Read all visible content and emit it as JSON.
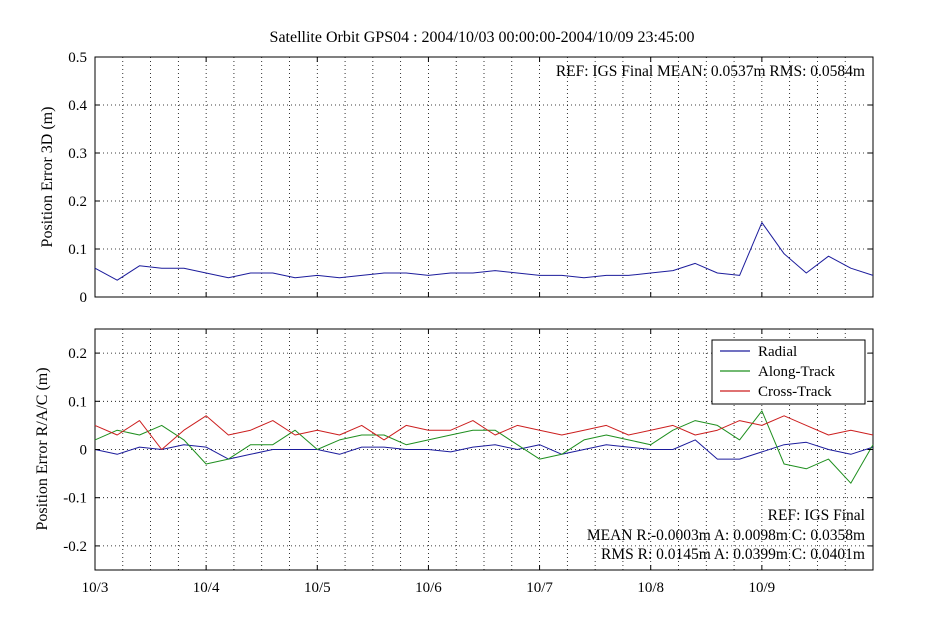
{
  "chart_data": [
    {
      "type": "line",
      "title": "Satellite Orbit GPS04 : 2004/10/03 00:00:00-2004/10/09 23:45:00",
      "xlabel": "",
      "ylabel": "Position Error 3D (m)",
      "xlim": [
        0,
        7
      ],
      "ylim": [
        0,
        0.5
      ],
      "yticks": [
        "0",
        "0.1",
        "0.2",
        "0.3",
        "0.4",
        "0.5"
      ],
      "xtick_labels": [
        "10/3",
        "10/4",
        "10/5",
        "10/6",
        "10/7",
        "10/8",
        "10/9"
      ],
      "grid": true,
      "annotation": "REF: IGS Final  MEAN:  0.0537m RMS:  0.0584m",
      "x": [
        0.0,
        0.2,
        0.4,
        0.6,
        0.8,
        1.0,
        1.2,
        1.4,
        1.6,
        1.8,
        2.0,
        2.2,
        2.4,
        2.6,
        2.8,
        3.0,
        3.2,
        3.4,
        3.6,
        3.8,
        4.0,
        4.2,
        4.4,
        4.6,
        4.8,
        5.0,
        5.2,
        5.4,
        5.6,
        5.8,
        6.0,
        6.2,
        6.4,
        6.6,
        6.8,
        7.0
      ],
      "series": [
        {
          "color": "#1c1c9c",
          "values": [
            0.06,
            0.035,
            0.065,
            0.06,
            0.06,
            0.05,
            0.04,
            0.05,
            0.05,
            0.04,
            0.045,
            0.04,
            0.045,
            0.05,
            0.05,
            0.045,
            0.05,
            0.05,
            0.055,
            0.05,
            0.045,
            0.045,
            0.04,
            0.045,
            0.045,
            0.05,
            0.055,
            0.07,
            0.05,
            0.045,
            0.155,
            0.09,
            0.05,
            0.085,
            0.06,
            0.045
          ]
        }
      ]
    },
    {
      "type": "line",
      "title": "",
      "xlabel": "",
      "ylabel": "Position Error R/A/C (m)",
      "xlim": [
        0,
        7
      ],
      "ylim": [
        -0.25,
        0.25
      ],
      "yticks": [
        "-0.2",
        "-0.1",
        "0",
        "0.1",
        "0.2"
      ],
      "xtick_labels": [
        "10/3",
        "10/4",
        "10/5",
        "10/6",
        "10/7",
        "10/8",
        "10/9"
      ],
      "grid": true,
      "legend_position": "top-right",
      "annotation_lines": [
        "REF: IGS Final",
        "MEAN R:-0.0003m A: 0.0098m C: 0.0358m",
        "RMS R: 0.0145m A: 0.0399m C: 0.0401m"
      ],
      "x": [
        0.0,
        0.2,
        0.4,
        0.6,
        0.8,
        1.0,
        1.2,
        1.4,
        1.6,
        1.8,
        2.0,
        2.2,
        2.4,
        2.6,
        2.8,
        3.0,
        3.2,
        3.4,
        3.6,
        3.8,
        4.0,
        4.2,
        4.4,
        4.6,
        4.8,
        5.0,
        5.2,
        5.4,
        5.6,
        5.8,
        6.0,
        6.2,
        6.4,
        6.6,
        6.8,
        7.0
      ],
      "series": [
        {
          "name": "Radial",
          "color": "#1c1c9c",
          "values": [
            0.0,
            -0.01,
            0.005,
            0.0,
            0.01,
            0.005,
            -0.02,
            -0.01,
            0.0,
            0.0,
            0.0,
            -0.01,
            0.005,
            0.005,
            0.0,
            0.0,
            -0.005,
            0.005,
            0.01,
            0.0,
            0.01,
            -0.01,
            0.0,
            0.01,
            0.005,
            0.0,
            0.0,
            0.02,
            -0.02,
            -0.02,
            -0.005,
            0.01,
            0.015,
            0.0,
            -0.01,
            0.005
          ]
        },
        {
          "name": "Along-Track",
          "color": "#1f8f1f",
          "values": [
            0.02,
            0.04,
            0.03,
            0.05,
            0.02,
            -0.03,
            -0.02,
            0.01,
            0.01,
            0.04,
            0.0,
            0.02,
            0.03,
            0.03,
            0.01,
            0.02,
            0.03,
            0.04,
            0.04,
            0.01,
            -0.02,
            -0.01,
            0.02,
            0.03,
            0.02,
            0.01,
            0.04,
            0.06,
            0.05,
            0.02,
            0.08,
            -0.03,
            -0.04,
            -0.02,
            -0.07,
            0.01
          ]
        },
        {
          "name": "Cross-Track",
          "color": "#cc1f1f",
          "values": [
            0.05,
            0.03,
            0.06,
            0.0,
            0.04,
            0.07,
            0.03,
            0.04,
            0.06,
            0.03,
            0.04,
            0.03,
            0.05,
            0.02,
            0.05,
            0.04,
            0.04,
            0.06,
            0.03,
            0.05,
            0.04,
            0.03,
            0.04,
            0.05,
            0.03,
            0.04,
            0.05,
            0.03,
            0.04,
            0.06,
            0.05,
            0.07,
            0.05,
            0.03,
            0.04,
            0.03
          ]
        }
      ]
    }
  ]
}
